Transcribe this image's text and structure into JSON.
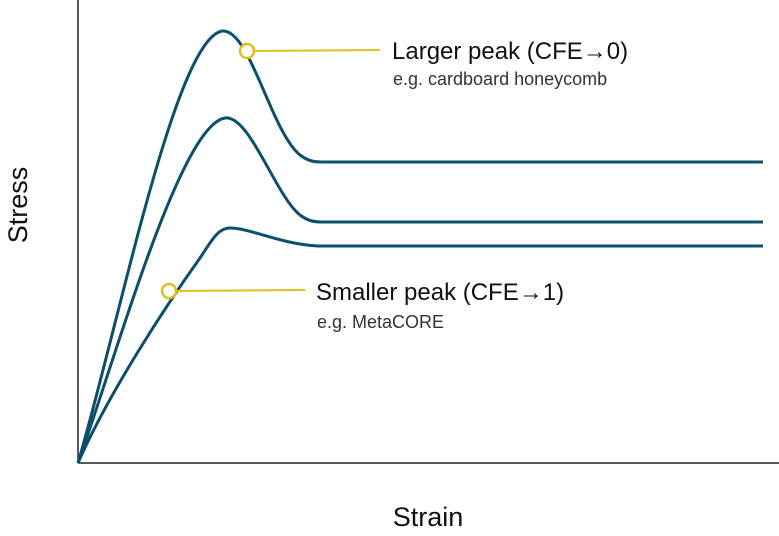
{
  "axes": {
    "x_label": "Strain",
    "y_label": "Stress"
  },
  "annotations": [
    {
      "title": "Larger peak (CFE→0)",
      "subtitle": "e.g. cardboard honeycomb"
    },
    {
      "title": "Smaller peak (CFE→1)",
      "subtitle": "e.g. MetaCORE"
    }
  ],
  "colors": {
    "curve": "#0d4f6b",
    "marker": "#e0bf1f",
    "axis": "#222222"
  }
}
